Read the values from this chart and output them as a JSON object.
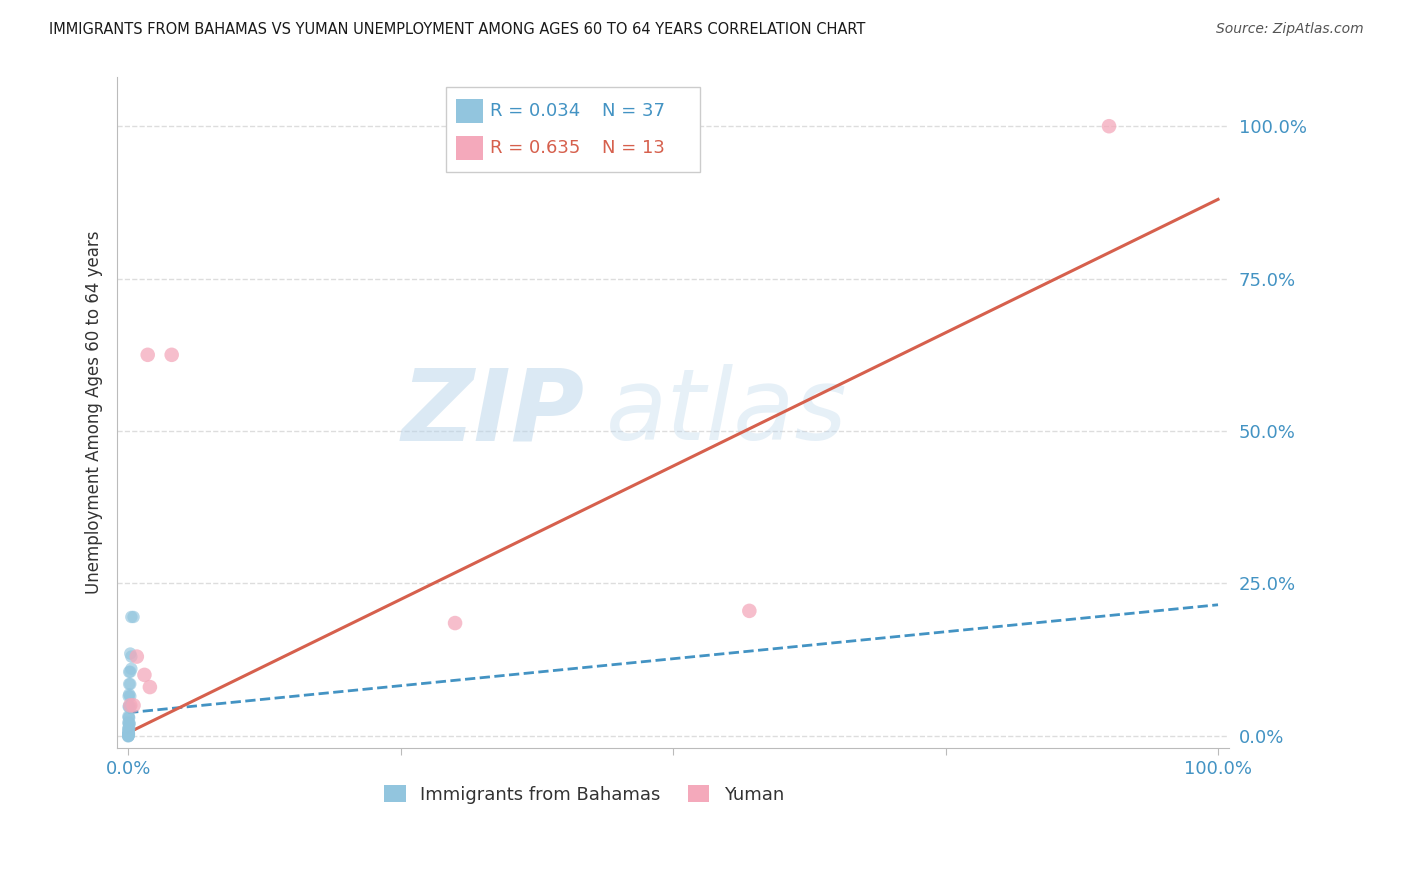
{
  "title": "IMMIGRANTS FROM BAHAMAS VS YUMAN UNEMPLOYMENT AMONG AGES 60 TO 64 YEARS CORRELATION CHART",
  "source": "Source: ZipAtlas.com",
  "ylabel": "Unemployment Among Ages 60 to 64 years",
  "ytick_labels": [
    "0.0%",
    "25.0%",
    "50.0%",
    "75.0%",
    "100.0%"
  ],
  "ytick_values": [
    0.0,
    0.25,
    0.5,
    0.75,
    1.0
  ],
  "legend_label1": "Immigrants from Bahamas",
  "legend_label2": "Yuman",
  "legend_R1": "R = 0.034",
  "legend_N1": "N = 37",
  "legend_R2": "R = 0.635",
  "legend_N2": "N = 13",
  "watermark_zip": "ZIP",
  "watermark_atlas": "atlas",
  "blue_color": "#92c5de",
  "pink_color": "#f4a9bb",
  "blue_line_color": "#4393c3",
  "pink_line_color": "#d6604d",
  "blue_scatter": [
    [
      0.003,
      0.195
    ],
    [
      0.005,
      0.195
    ],
    [
      0.002,
      0.135
    ],
    [
      0.003,
      0.13
    ],
    [
      0.001,
      0.105
    ],
    [
      0.002,
      0.105
    ],
    [
      0.003,
      0.11
    ],
    [
      0.001,
      0.085
    ],
    [
      0.002,
      0.085
    ],
    [
      0.0005,
      0.065
    ],
    [
      0.001,
      0.068
    ],
    [
      0.002,
      0.065
    ],
    [
      0.0005,
      0.048
    ],
    [
      0.001,
      0.048
    ],
    [
      0.002,
      0.048
    ],
    [
      0.0003,
      0.032
    ],
    [
      0.0006,
      0.03
    ],
    [
      0.001,
      0.03
    ],
    [
      0.0003,
      0.022
    ],
    [
      0.0006,
      0.02
    ],
    [
      0.001,
      0.02
    ],
    [
      0.0015,
      0.02
    ],
    [
      0.0002,
      0.012
    ],
    [
      0.0005,
      0.012
    ],
    [
      0.001,
      0.012
    ],
    [
      0.0002,
      0.007
    ],
    [
      0.0005,
      0.007
    ],
    [
      0.0001,
      0.003
    ],
    [
      0.0003,
      0.003
    ],
    [
      0.0005,
      0.003
    ],
    [
      0.0008,
      0.003
    ],
    [
      0.0001,
      0.001
    ],
    [
      0.0003,
      0.001
    ],
    [
      0.0001,
      0.0
    ],
    [
      0.0003,
      0.0
    ],
    [
      0.0005,
      0.0
    ],
    [
      0.0001,
      -0.001
    ]
  ],
  "pink_scatter": [
    [
      0.018,
      0.625
    ],
    [
      0.04,
      0.625
    ],
    [
      0.008,
      0.13
    ],
    [
      0.015,
      0.1
    ],
    [
      0.02,
      0.08
    ],
    [
      0.002,
      0.05
    ],
    [
      0.005,
      0.05
    ],
    [
      0.3,
      0.185
    ],
    [
      0.57,
      0.205
    ],
    [
      0.9,
      1.0
    ]
  ],
  "blue_trendline_x": [
    0.0,
    1.0
  ],
  "blue_trendline_y": [
    0.038,
    0.215
  ],
  "pink_trendline_x": [
    0.0,
    1.0
  ],
  "pink_trendline_y": [
    0.005,
    0.88
  ],
  "xlim": [
    -0.01,
    1.01
  ],
  "ylim": [
    -0.02,
    1.08
  ],
  "background_color": "#ffffff",
  "grid_color": "#dddddd",
  "title_color": "#1a1a1a",
  "axis_label_color": "#4393c3",
  "scatter_size_blue": 80,
  "scatter_size_pink": 110
}
